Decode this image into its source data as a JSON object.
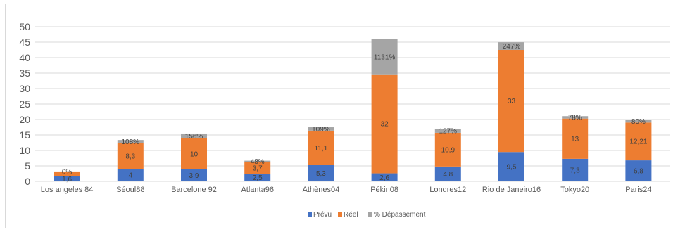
{
  "chart_data": {
    "type": "bar",
    "stacked": true,
    "categories": [
      "Los angeles 84",
      "Séoul88",
      "Barcelone 92",
      "Atlanta96",
      "Athènes04",
      "Pékin08",
      "Londres12",
      "Rio de Janeiro16",
      "Tokyo20",
      "Paris24"
    ],
    "series": [
      {
        "name": "Prévu",
        "color": "#4472c4",
        "values": [
          1.6,
          4,
          3.9,
          2.5,
          5.3,
          2.6,
          4.8,
          9.5,
          7.3,
          6.8
        ],
        "labels": [
          "1,6",
          "4",
          "3,9",
          "2,5",
          "5,3",
          "2,6",
          "4,8",
          "9,5",
          "7,3",
          "6,8"
        ]
      },
      {
        "name": "Réel",
        "color": "#ed7d31",
        "values": [
          1.6,
          8.3,
          10,
          3.7,
          11.1,
          32,
          10.9,
          33,
          13,
          12.21
        ],
        "labels": [
          "",
          "8,3",
          "10",
          "3,7",
          "11,1",
          "32",
          "10,9",
          "33",
          "13",
          "12,21"
        ]
      },
      {
        "name": "% Dépassement",
        "color": "#a5a5a5",
        "values": [
          0,
          1.08,
          1.56,
          0.48,
          1.09,
          11.31,
          1.27,
          2.47,
          0.78,
          0.8
        ],
        "labels": [
          "0%",
          "108%",
          "156%",
          "48%",
          "109%",
          "1131%",
          "127%",
          "247%",
          "78%",
          "80%"
        ]
      }
    ],
    "ylim": [
      0,
      50
    ],
    "yticks": [
      0,
      5,
      10,
      15,
      20,
      25,
      30,
      35,
      40,
      45,
      50
    ],
    "grid": true,
    "legend": "bottom"
  }
}
